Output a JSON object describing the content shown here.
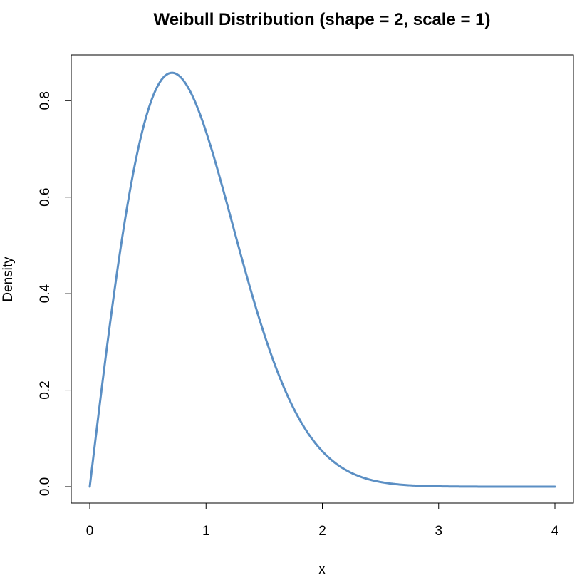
{
  "chart_data": {
    "type": "line",
    "title": "Weibull Distribution (shape = 2, scale = 1)",
    "xlabel": "x",
    "ylabel": "Density",
    "xlim": [
      0,
      4
    ],
    "ylim": [
      0,
      0.858
    ],
    "x_ticks": [
      0,
      1,
      2,
      3,
      4
    ],
    "x_tick_labels": [
      "0",
      "1",
      "2",
      "3",
      "4"
    ],
    "y_ticks": [
      0.0,
      0.2,
      0.4,
      0.6,
      0.8
    ],
    "y_tick_labels": [
      "0.0",
      "0.2",
      "0.4",
      "0.6",
      "0.8"
    ],
    "grid": false,
    "line_color": "#5b8fc4",
    "series": [
      {
        "x": [
          0,
          0.1,
          0.2,
          0.3,
          0.4,
          0.5,
          0.6,
          0.7,
          0.7071,
          0.8,
          0.9,
          1.0,
          1.1,
          1.2,
          1.3,
          1.4,
          1.5,
          1.6,
          1.7,
          1.8,
          1.9,
          2.0,
          2.2,
          2.4,
          2.6,
          2.8,
          3.0,
          3.2,
          3.4,
          3.6,
          3.8,
          4.0
        ],
        "values": [
          0,
          0.198,
          0.384,
          0.548,
          0.682,
          0.779,
          0.837,
          0.857,
          0.858,
          0.844,
          0.801,
          0.736,
          0.657,
          0.569,
          0.48,
          0.394,
          0.316,
          0.247,
          0.189,
          0.141,
          0.103,
          0.073,
          0.035,
          0.015,
          0.006,
          0.002,
          0.0007,
          0.0002,
          3e-05,
          4e-06,
          4e-07,
          3e-08
        ]
      }
    ]
  }
}
